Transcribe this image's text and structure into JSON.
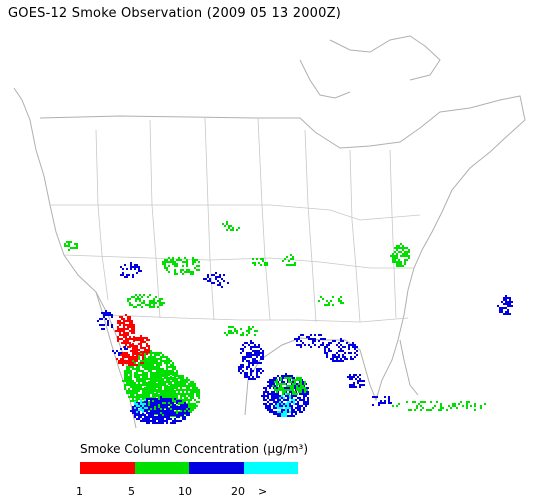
{
  "title": "GOES-12 Smoke Observation (2009 05 13  2000Z)",
  "legend": {
    "title": "Smoke Column Concentration (μg/m³)",
    "bins": [
      {
        "color": "#ff0000"
      },
      {
        "color": "#00e000"
      },
      {
        "color": "#0000e0"
      },
      {
        "color": "#00ffff"
      }
    ],
    "ticks": [
      "1",
      "5",
      "10",
      "20",
      ">"
    ]
  },
  "colors": {
    "land": "#ffffff",
    "coastline": "#b0b0b0",
    "border": "#c8c8c8"
  }
}
